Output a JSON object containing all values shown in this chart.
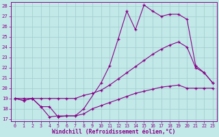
{
  "bg_color": "#c2e8e8",
  "grid_color": "#a0cccc",
  "line_color": "#880088",
  "xlabel": "Windchill (Refroidissement éolien,°C)",
  "xlim_min": -0.5,
  "xlim_max": 23.5,
  "ylim_min": 16.8,
  "ylim_max": 28.4,
  "xticks": [
    0,
    1,
    2,
    3,
    4,
    5,
    6,
    7,
    8,
    9,
    10,
    11,
    12,
    13,
    14,
    15,
    16,
    17,
    18,
    19,
    20,
    21,
    22,
    23
  ],
  "yticks": [
    17,
    18,
    19,
    20,
    21,
    22,
    23,
    24,
    25,
    26,
    27,
    28
  ],
  "line1_x": [
    0,
    1,
    2,
    3,
    4,
    5,
    6,
    7,
    8,
    10,
    11,
    12,
    13,
    14,
    15,
    16,
    17,
    18,
    19,
    20,
    21,
    22,
    23
  ],
  "line1_y": [
    19,
    18.8,
    19,
    18.2,
    18.2,
    17.2,
    17.3,
    17.3,
    18.0,
    20.5,
    22.2,
    24.8,
    27.5,
    25.7,
    28.1,
    27.5,
    27.0,
    27.2,
    27.2,
    26.7,
    22.2,
    21.5,
    20.5
  ],
  "line2_x": [
    0,
    1,
    2,
    3,
    4,
    5,
    6,
    7,
    8,
    9,
    10,
    11,
    12,
    13,
    14,
    15,
    16,
    17,
    18,
    19,
    20,
    21,
    22,
    23
  ],
  "line2_y": [
    19,
    19,
    19,
    19,
    19,
    19,
    19,
    19,
    19.3,
    19.5,
    19.8,
    20.3,
    20.9,
    21.5,
    22.1,
    22.7,
    23.3,
    23.8,
    24.2,
    24.5,
    24.0,
    22.0,
    21.5,
    20.5
  ],
  "line3_x": [
    0,
    1,
    2,
    3,
    4,
    5,
    6,
    7,
    8,
    9,
    10,
    11,
    12,
    13,
    14,
    15,
    16,
    17,
    18,
    19,
    20,
    21,
    22,
    23
  ],
  "line3_y": [
    19,
    18.8,
    19,
    18.2,
    17.2,
    17.3,
    17.3,
    17.3,
    17.5,
    18.0,
    18.3,
    18.6,
    18.9,
    19.2,
    19.5,
    19.7,
    19.9,
    20.1,
    20.2,
    20.3,
    20.0,
    20.0,
    20.0,
    20.0
  ]
}
